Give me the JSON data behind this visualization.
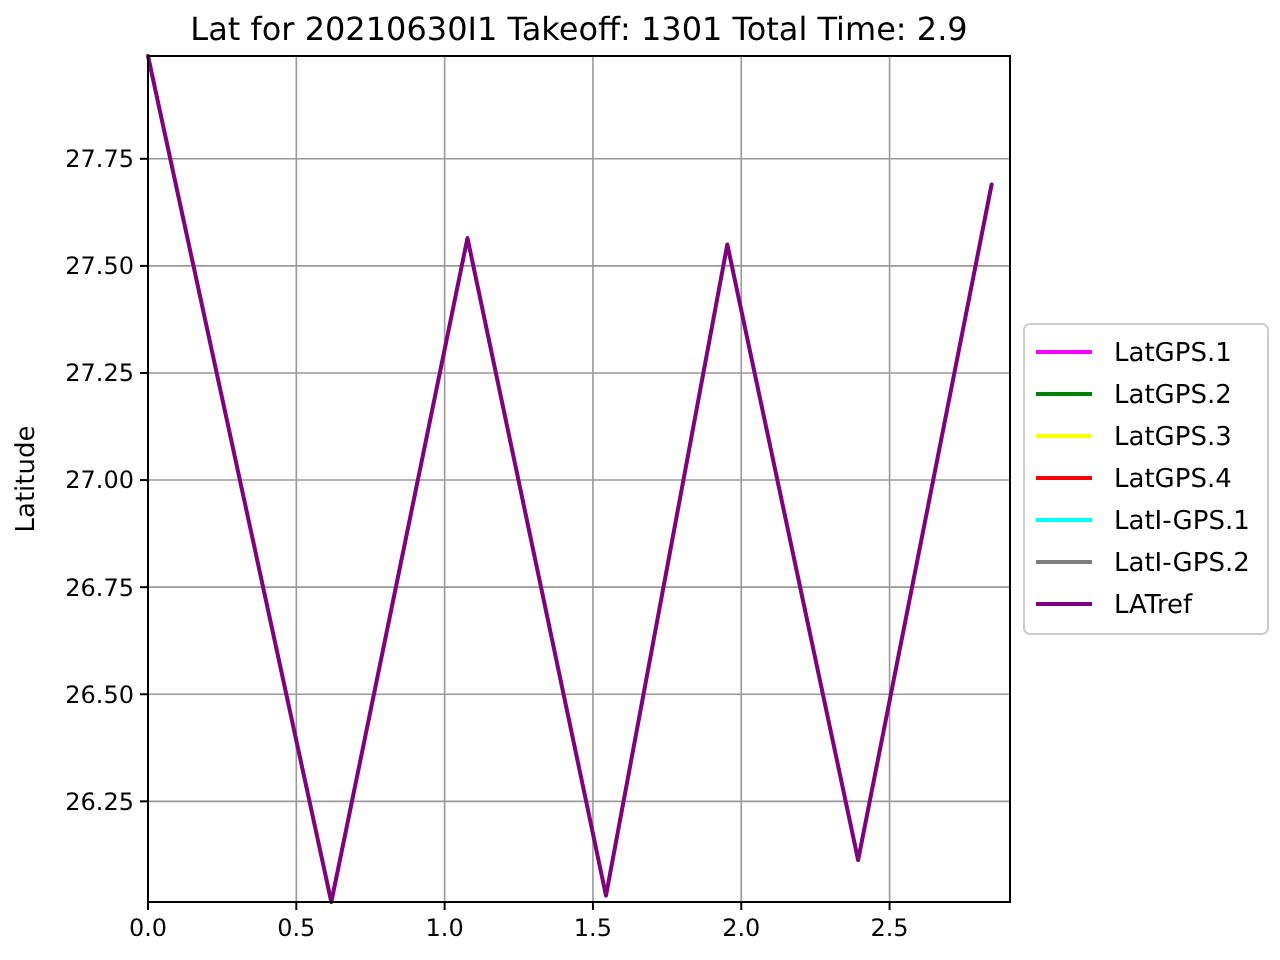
{
  "chart_data": {
    "type": "line",
    "title": "Lat for 20210630I1 Takeoff: 1301 Total Time: 2.9",
    "ylabel": "Latitude",
    "x": [
      0,
      0.618,
      1.077,
      1.544,
      1.953,
      2.394,
      2.844
    ],
    "xlim": [
      0,
      2.906
    ],
    "ylim": [
      26.015,
      27.99
    ],
    "xticks": [
      {
        "value": 0,
        "label": "0.0"
      },
      0.5,
      {
        "value": 1,
        "label": "1.0"
      },
      1.5,
      {
        "value": 2,
        "label": "2.0"
      },
      2.5
    ],
    "yticks": [
      26.25,
      {
        "value": 26.5,
        "label": "26.50"
      },
      26.75,
      {
        "value": 27,
        "label": "27.00"
      },
      27.25,
      {
        "value": 27.5,
        "label": "27.50"
      },
      27.75
    ],
    "grid": true,
    "legend": "right",
    "line_style": "solid",
    "marker": "none",
    "series": [
      {
        "name": "LatGPS.1",
        "color": "#ff00ff",
        "values": [
          null,
          null,
          null,
          null,
          null,
          null,
          null
        ]
      },
      {
        "name": "LatGPS.2",
        "color": "#008000",
        "values": [
          null,
          null,
          null,
          null,
          null,
          null,
          null
        ]
      },
      {
        "name": "LatGPS.3",
        "color": "#ffff00",
        "values": [
          null,
          null,
          null,
          null,
          null,
          null,
          null
        ]
      },
      {
        "name": "LatGPS.4",
        "color": "#ff0000",
        "values": [
          null,
          null,
          null,
          null,
          null,
          null,
          null
        ]
      },
      {
        "name": "LatI-GPS.1",
        "color": "#00ffff",
        "values": [
          null,
          null,
          null,
          null,
          null,
          null,
          null
        ]
      },
      {
        "name": "LatI-GPS.2",
        "color": "#808080",
        "values": [
          null,
          null,
          null,
          null,
          null,
          null,
          null
        ]
      },
      {
        "name": "LATref",
        "color": "#800080",
        "values": [
          27.99,
          26.015,
          27.565,
          26.03,
          27.55,
          26.113,
          27.69
        ]
      }
    ]
  }
}
